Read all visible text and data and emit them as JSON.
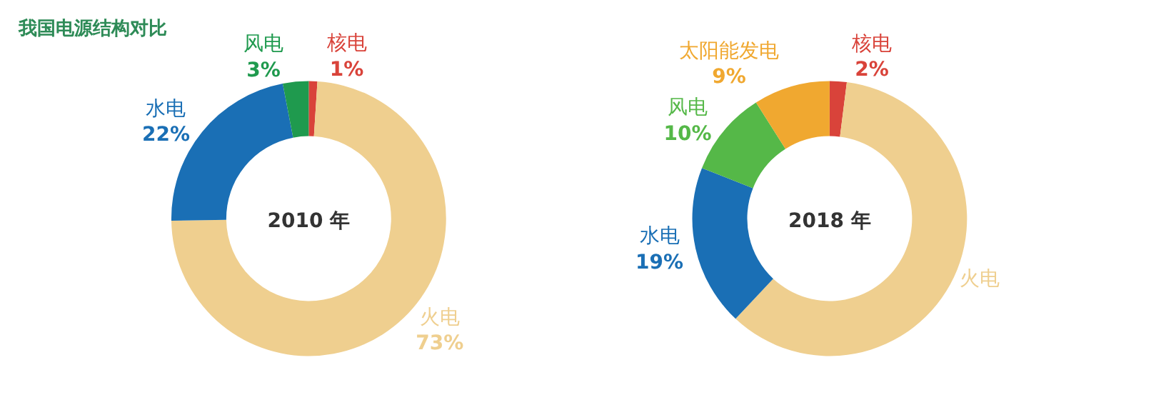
{
  "chart_data": [
    {
      "type": "donut",
      "title": "我国电源结构对比",
      "categories": [
        "核电",
        "火电",
        "水电",
        "风电"
      ],
      "values": [
        1,
        73,
        22,
        3
      ],
      "value_labels": [
        "1%",
        "73%",
        "22%",
        "3%"
      ],
      "colors": [
        "#d9433a",
        "#efcf8f",
        "#1a6fb5",
        "#1f9a4e"
      ],
      "annotations": [
        "2010 年"
      ]
    },
    {
      "type": "donut",
      "categories": [
        "核电",
        "火电",
        "水电",
        "风电",
        "太阳能发电"
      ],
      "values": [
        2,
        60,
        19,
        10,
        9
      ],
      "value_labels": [
        "2%",
        null,
        "19%",
        "10%",
        "9%"
      ],
      "colors": [
        "#d9433a",
        "#efcf8f",
        "#1a6fb5",
        "#55b848",
        "#f0a830"
      ],
      "annotations": [
        "2018 年"
      ]
    }
  ]
}
